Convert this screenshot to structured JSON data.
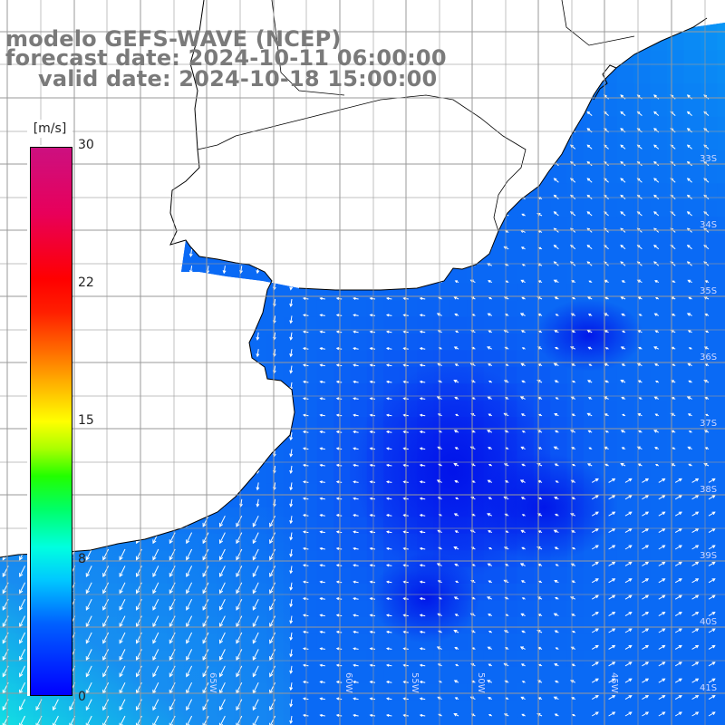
{
  "title": {
    "line1": "modelo GEFS-WAVE (NCEP)",
    "line2": "forecast date: 2024-10-11 06:00:00",
    "line3": "valid date: 2024-10-18 15:00:00"
  },
  "colorbar": {
    "unit": "[m/s]",
    "ticks": [
      "30",
      "22",
      "15",
      "8",
      "0"
    ]
  },
  "latitude_labels": [
    "33S",
    "34S",
    "35S",
    "36S",
    "37S",
    "38S",
    "39S",
    "40S",
    "41S"
  ],
  "longitude_labels": [
    "65W",
    "60W",
    "55W",
    "50W",
    "45W"
  ],
  "colors": {
    "land": "#ffffff",
    "grid": "#9a9a9a",
    "arrow": "#ffffff",
    "title": "#7a7a7a"
  }
}
